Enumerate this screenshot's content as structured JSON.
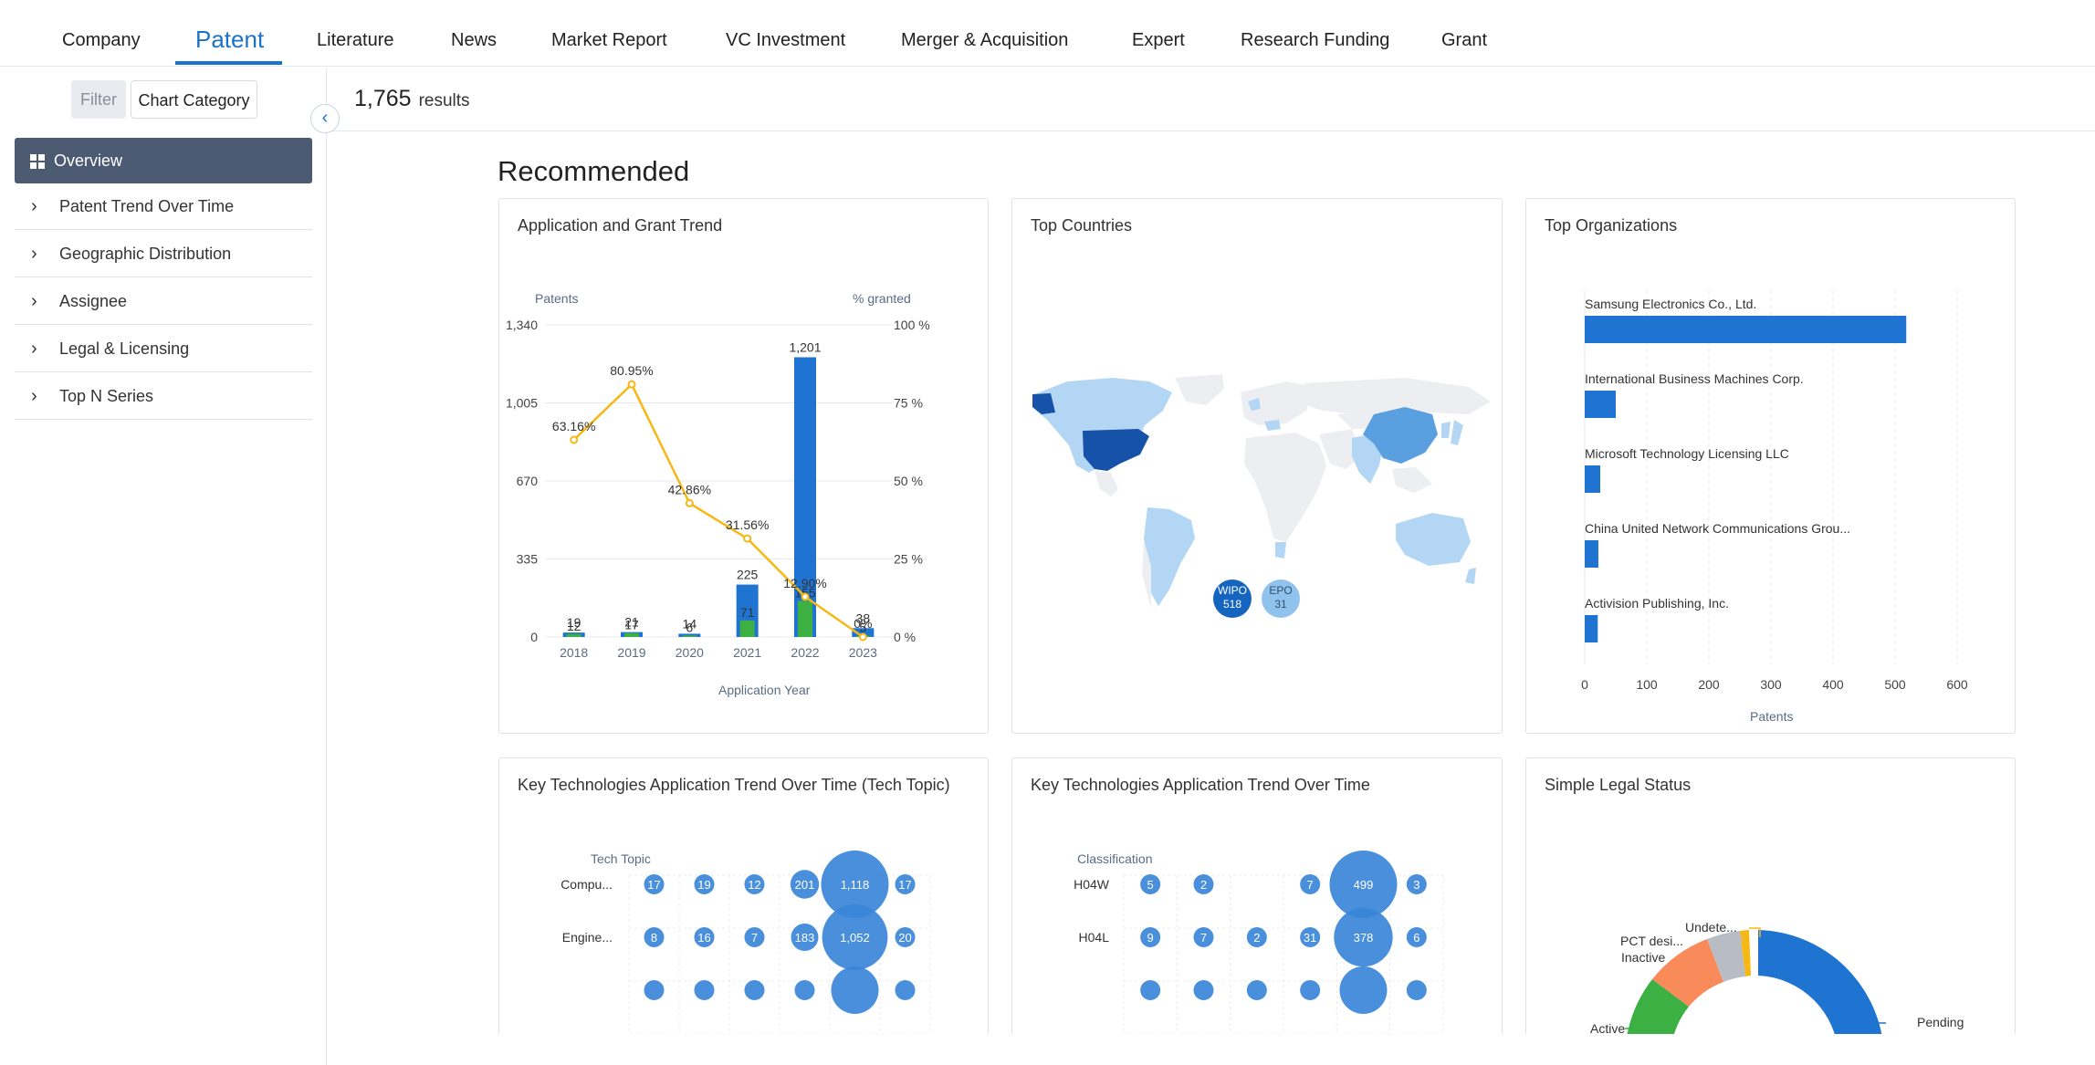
{
  "nav": {
    "tabs": [
      "Company",
      "Patent",
      "Literature",
      "News",
      "Market Report",
      "VC Investment",
      "Merger & Acquisition",
      "Expert",
      "Research Funding",
      "Grant"
    ],
    "active": "Patent"
  },
  "sidebar": {
    "filter_label": "Filter",
    "chart_category_label": "Chart Category",
    "overview_label": "Overview",
    "items": [
      {
        "label": "Patent Trend Over Time"
      },
      {
        "label": "Geographic Distribution"
      },
      {
        "label": "Assignee"
      },
      {
        "label": "Legal & Licensing"
      },
      {
        "label": "Top N Series"
      }
    ]
  },
  "results": {
    "count": "1,765",
    "label": "results"
  },
  "section_title": "Recommended",
  "cards": {
    "app_grant": {
      "title": "Application and Grant Trend",
      "chart_data": {
        "type": "bar",
        "y_left_label": "Patents",
        "y_right_label": "% granted",
        "xlabel": "Application Year",
        "y_ticks": [
          "0",
          "335",
          "670",
          "1,005",
          "1,340"
        ],
        "y_right_ticks": [
          "0 %",
          "25 %",
          "50 %",
          "75 %",
          "100 %"
        ],
        "ylim": [
          0,
          1340
        ],
        "categories": [
          "2018",
          "2019",
          "2020",
          "2021",
          "2022",
          "2023"
        ],
        "series": [
          {
            "name": "Applications",
            "values": [
              19,
              21,
              14,
              225,
              1201,
              38
            ],
            "color": "#1f74d1"
          },
          {
            "name": "Grants",
            "values": [
              12,
              17,
              6,
              71,
              155,
              5
            ],
            "color": "#3cb043"
          },
          {
            "name": "% granted",
            "values": [
              63.16,
              80.95,
              42.86,
              31.56,
              12.9,
              0
            ],
            "color": "#f6b814"
          }
        ],
        "bar_labels": [
          "19",
          "21",
          "14",
          "225",
          "1,201",
          "38"
        ],
        "grant_labels": [
          "12",
          "17",
          "6",
          "71",
          "155",
          "5"
        ],
        "pct_labels": [
          "63.16%",
          "80.95%",
          "42.86%",
          "31.56%",
          "12.90%",
          "0%"
        ]
      }
    },
    "countries": {
      "title": "Top Countries",
      "bubbles": [
        {
          "label": "WIPO",
          "value": "518",
          "color": "#1565c0"
        },
        {
          "label": "EPO",
          "value": "31",
          "color": "#8fc3ee"
        }
      ]
    },
    "orgs": {
      "title": "Top Organizations",
      "chart_data": {
        "type": "bar",
        "orientation": "horizontal",
        "categories": [
          "Samsung Electronics Co., Ltd.",
          "International Business Machines Corp.",
          "Microsoft Technology Licensing LLC",
          "China United Network Communications Grou...",
          "Activision Publishing, Inc."
        ],
        "values": [
          518,
          50,
          25,
          22,
          21
        ],
        "xlim": [
          0,
          600
        ],
        "x_ticks": [
          "0",
          "100",
          "200",
          "300",
          "400",
          "500",
          "600"
        ],
        "xlabel": "Patents"
      }
    },
    "tech_topic": {
      "title": "Key Technologies Application Trend Over Time  (Tech Topic)",
      "axis_label": "Tech Topic",
      "rows": [
        {
          "label": "Compu...",
          "values": [
            17,
            19,
            12,
            201,
            1118,
            17
          ]
        },
        {
          "label": "Engine...",
          "values": [
            8,
            16,
            7,
            183,
            1052,
            20
          ]
        }
      ]
    },
    "classification": {
      "title": "Key Technologies Application Trend Over Time",
      "axis_label": "Classification",
      "rows": [
        {
          "label": "H04W",
          "values": [
            5,
            2,
            null,
            7,
            499,
            3
          ]
        },
        {
          "label": "H04L",
          "values": [
            9,
            7,
            2,
            31,
            378,
            6
          ]
        }
      ]
    },
    "legal": {
      "title": "Simple Legal Status",
      "labels": [
        "Undete...",
        "PCT desi...",
        "Inactive",
        "Active",
        "Pending"
      ],
      "colors": {
        "pending": "#1f74d1",
        "active": "#3cb043",
        "inactive": "#f98a5a",
        "pct": "#b8bcc4",
        "undetermined": "#f6b814"
      }
    }
  }
}
